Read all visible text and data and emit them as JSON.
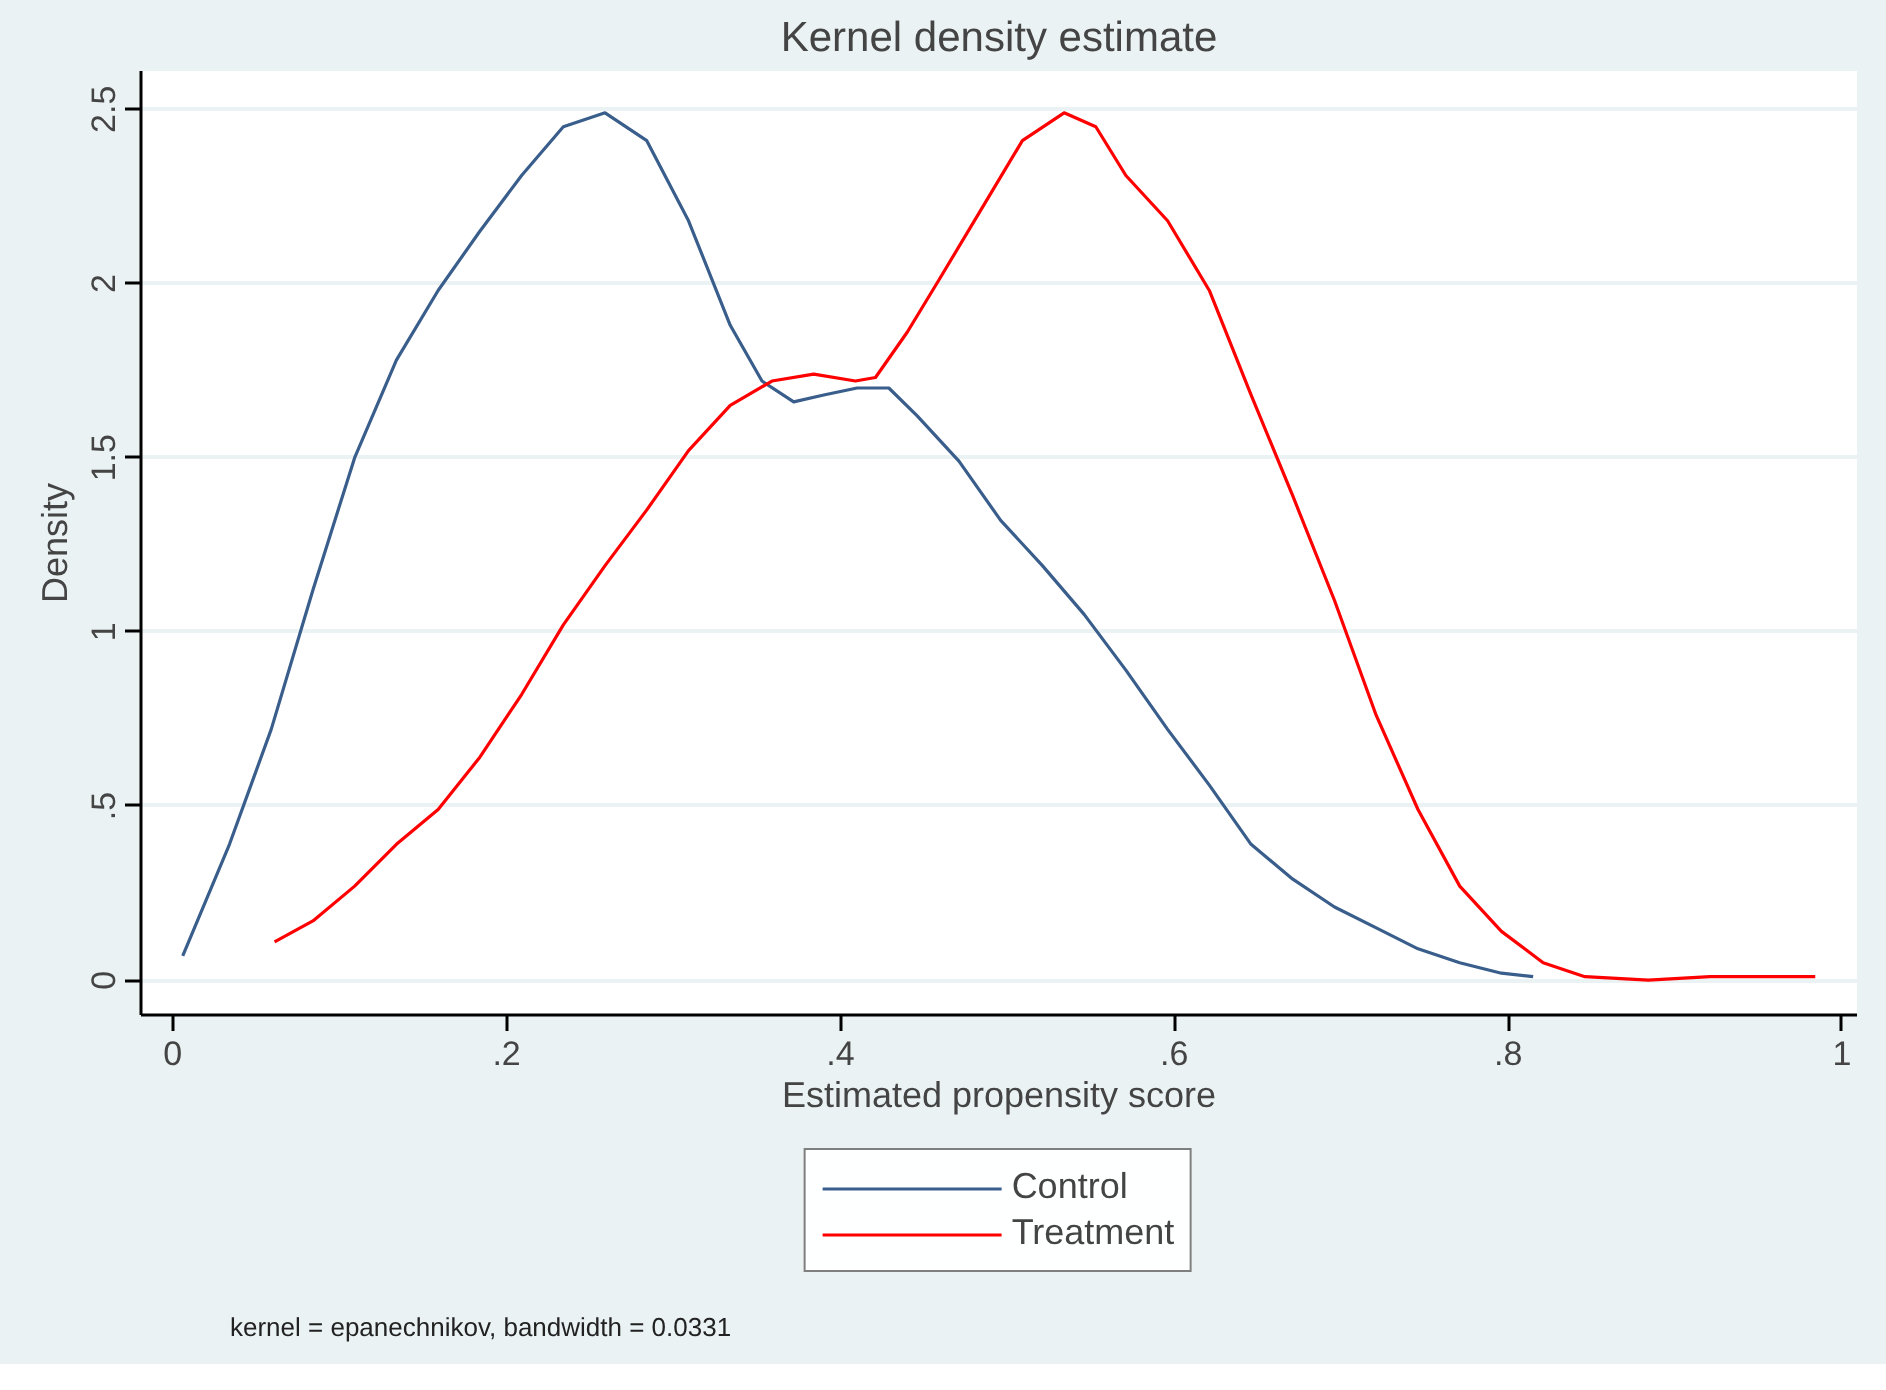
{
  "chart_data": {
    "type": "line",
    "title": "Kernel density estimate",
    "xlabel": "Estimated propensity score",
    "ylabel": "Density",
    "xlim": [
      -0.019,
      1.009
    ],
    "ylim": [
      -0.1,
      2.61
    ],
    "xticks": [
      {
        "value": 0,
        "label": "0"
      },
      {
        "value": 0.2,
        "label": ".2"
      },
      {
        "value": 0.4,
        "label": ".4"
      },
      {
        "value": 0.6,
        "label": ".6"
      },
      {
        "value": 0.8,
        "label": ".8"
      },
      {
        "value": 1,
        "label": "1"
      }
    ],
    "yticks": [
      {
        "value": 0,
        "label": "0"
      },
      {
        "value": 0.5,
        "label": ".5"
      },
      {
        "value": 1,
        "label": "1"
      },
      {
        "value": 1.5,
        "label": "1.5"
      },
      {
        "value": 2,
        "label": "2"
      },
      {
        "value": 2.5,
        "label": "2.5"
      }
    ],
    "grid": "y",
    "legend": "bottom",
    "line_style": "solid",
    "annotations": [
      "kernel = epanechnikov, bandwidth = 0.0331"
    ],
    "series": [
      {
        "name": "Control",
        "color": "#3a5e8c",
        "x": [
          0.006,
          0.034,
          0.059,
          0.084,
          0.109,
          0.134,
          0.159,
          0.184,
          0.209,
          0.234,
          0.259,
          0.284,
          0.309,
          0.334,
          0.353,
          0.372,
          0.39,
          0.41,
          0.429,
          0.446,
          0.471,
          0.496,
          0.521,
          0.546,
          0.571,
          0.596,
          0.621,
          0.646,
          0.671,
          0.696,
          0.721,
          0.746,
          0.771,
          0.796,
          0.815
        ],
        "values": [
          0.07,
          0.39,
          0.72,
          1.12,
          1.5,
          1.78,
          1.98,
          2.15,
          2.31,
          2.45,
          2.49,
          2.41,
          2.18,
          1.88,
          1.72,
          1.66,
          1.68,
          1.7,
          1.7,
          1.62,
          1.49,
          1.32,
          1.19,
          1.05,
          0.89,
          0.72,
          0.56,
          0.39,
          0.29,
          0.21,
          0.15,
          0.09,
          0.05,
          0.02,
          0.01
        ]
      },
      {
        "name": "Treatment",
        "color": "#ff0000",
        "x": [
          0.061,
          0.084,
          0.109,
          0.134,
          0.159,
          0.184,
          0.209,
          0.234,
          0.259,
          0.284,
          0.309,
          0.334,
          0.359,
          0.384,
          0.409,
          0.421,
          0.44,
          0.459,
          0.484,
          0.509,
          0.534,
          0.553,
          0.571,
          0.596,
          0.621,
          0.646,
          0.671,
          0.696,
          0.721,
          0.746,
          0.771,
          0.796,
          0.821,
          0.846,
          0.884,
          0.921,
          0.971,
          0.984
        ],
        "values": [
          0.11,
          0.17,
          0.27,
          0.39,
          0.49,
          0.64,
          0.82,
          1.02,
          1.19,
          1.35,
          1.52,
          1.65,
          1.72,
          1.74,
          1.72,
          1.73,
          1.86,
          2.01,
          2.21,
          2.41,
          2.49,
          2.45,
          2.31,
          2.18,
          1.98,
          1.68,
          1.39,
          1.09,
          0.76,
          0.49,
          0.27,
          0.14,
          0.05,
          0.01,
          0.0,
          0.01,
          0.01,
          0.01
        ]
      }
    ]
  }
}
